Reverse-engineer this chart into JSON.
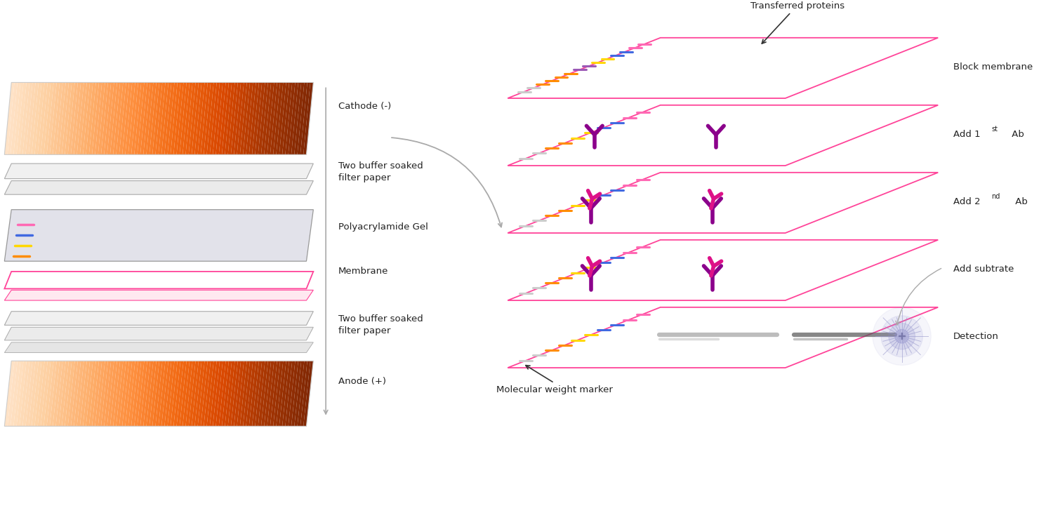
{
  "bg": "#ffffff",
  "pink": "#FF4499",
  "text_color": "#222222",
  "ab1_color": "#8B008B",
  "ab2_primary": "#8B008B",
  "ab2_secondary": "#DD1188",
  "detection_color": "#8888CC",
  "band_color": "#555555",
  "left_labels": [
    "Cathode (-)",
    "Two buffer soaked\nfilter paper",
    "Polyacrylamide Gel",
    "Membrane",
    "Two buffer soaked\nfilter paper",
    "Anode (+)"
  ],
  "right_labels": [
    "Block membrane",
    "Add 1st Ab",
    "Add 2nd Ab",
    "Add subtrate",
    "Detection"
  ],
  "marker_long": [
    "#CCCCCC",
    "#CCCCCC",
    "#FF8C00",
    "#FF8C00",
    "#FF8C00",
    "#FF8C00",
    "#9B59B6",
    "#9B59B6",
    "#FFD700",
    "#FFD700",
    "#4169E1",
    "#4169E1",
    "#FF69B4",
    "#FF69B4"
  ],
  "marker_short": [
    "#CCCCCC",
    "#CCCCCC",
    "#FF8C00",
    "#FF8C00",
    "#FFD700",
    "#FFD700",
    "#4169E1",
    "#4169E1",
    "#FF69B4",
    "#FF69B4"
  ],
  "gel_bands": [
    "#FF8C00",
    "#FFD700",
    "#4169E1",
    "#FF69B4"
  ]
}
